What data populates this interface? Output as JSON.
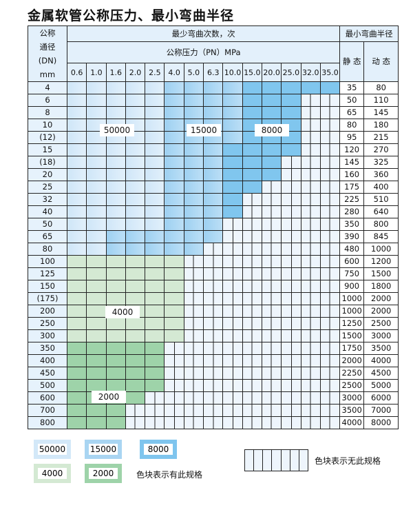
{
  "title": "金属软管公称压力、最小弯曲半径",
  "header": {
    "dn_label": [
      "公称",
      "通径",
      "(DN)",
      "mm"
    ],
    "bend_count": "最少弯曲次数，次",
    "pressure": "公称压力（PN）MPa",
    "min_radius": "最小弯曲半径",
    "static": "静 态",
    "dynamic": "动 态",
    "pressures": [
      "0.6",
      "1.0",
      "1.6",
      "2.0",
      "2.5",
      "4.0",
      "5.0",
      "6.3",
      "10.0",
      "15.0",
      "20.0",
      "25.0",
      "32.0",
      "35.0"
    ]
  },
  "categories": {
    "A": {
      "label": "50000",
      "color": "#d6eaf8"
    },
    "B": {
      "label": "15000",
      "color": "#a8d4f2"
    },
    "C": {
      "label": "8000",
      "color": "#80c6ee"
    },
    "D": {
      "label": "4000",
      "color": "#d4e9d3"
    },
    "E": {
      "label": "2000",
      "color": "#9ed3a9"
    },
    "N": {
      "label": "",
      "color": "#eef5fc"
    }
  },
  "rows": [
    {
      "dn": "4",
      "cells": "AAAAABBBBCCCCC",
      "static": "35",
      "dynamic": "80"
    },
    {
      "dn": "6",
      "cells": "AAAAABBBBCCCNN",
      "static": "50",
      "dynamic": "110"
    },
    {
      "dn": "8",
      "cells": "AAAAABBBBCCCNN",
      "static": "65",
      "dynamic": "145"
    },
    {
      "dn": "10",
      "cells": "AAAAABBBBCCCNN",
      "static": "80",
      "dynamic": "180"
    },
    {
      "dn": "(12)",
      "cells": "AAAAABBBBCCCNN",
      "static": "95",
      "dynamic": "215"
    },
    {
      "dn": "15",
      "cells": "AAAAABBBCCCCNN",
      "static": "120",
      "dynamic": "270"
    },
    {
      "dn": "(18)",
      "cells": "AAAAABBBCCCNNN",
      "static": "145",
      "dynamic": "325"
    },
    {
      "dn": "20",
      "cells": "AAAAABBBCCCNNN",
      "static": "160",
      "dynamic": "360"
    },
    {
      "dn": "25",
      "cells": "AAAAABBBCCNNNN",
      "static": "175",
      "dynamic": "400"
    },
    {
      "dn": "32",
      "cells": "AAAAABBBCNNNNN",
      "static": "225",
      "dynamic": "510"
    },
    {
      "dn": "40",
      "cells": "AAAAABBBCNNNNN",
      "static": "280",
      "dynamic": "640"
    },
    {
      "dn": "50",
      "cells": "AAAAABBBNNNNNN",
      "static": "350",
      "dynamic": "800"
    },
    {
      "dn": "65",
      "cells": "AABBBBBBNNNNNN",
      "static": "390",
      "dynamic": "845"
    },
    {
      "dn": "80",
      "cells": "AABBBBBNNNNNNN",
      "static": "480",
      "dynamic": "1000"
    },
    {
      "dn": "100",
      "cells": "DDDDDDNNNNNNNN",
      "static": "600",
      "dynamic": "1200"
    },
    {
      "dn": "125",
      "cells": "DDDDDDNNNNNNNN",
      "static": "750",
      "dynamic": "1500"
    },
    {
      "dn": "150",
      "cells": "DDDDDDNNNNNNNN",
      "static": "900",
      "dynamic": "1800"
    },
    {
      "dn": "(175)",
      "cells": "DDDDDDNNNNNNNN",
      "static": "1000",
      "dynamic": "2000"
    },
    {
      "dn": "200",
      "cells": "DDDDDDNNNNNNNN",
      "static": "1000",
      "dynamic": "2000"
    },
    {
      "dn": "250",
      "cells": "DDDDDDNNNNNNNN",
      "static": "1250",
      "dynamic": "2500"
    },
    {
      "dn": "300",
      "cells": "DDDDDDNNNNNNNN",
      "static": "1500",
      "dynamic": "3000"
    },
    {
      "dn": "350",
      "cells": "EEEEENNNNNNNNN",
      "static": "1750",
      "dynamic": "3500"
    },
    {
      "dn": "400",
      "cells": "EEEEENNNNNNNNN",
      "static": "2000",
      "dynamic": "4000"
    },
    {
      "dn": "450",
      "cells": "EEEEENNNNNNNNN",
      "static": "2250",
      "dynamic": "4500"
    },
    {
      "dn": "500",
      "cells": "EEEEENNNNNNNNN",
      "static": "2500",
      "dynamic": "5000"
    },
    {
      "dn": "600",
      "cells": "EEEENNNNNNNNNN",
      "static": "3000",
      "dynamic": "6000"
    },
    {
      "dn": "700",
      "cells": "EEENNNNNNNNNNN",
      "static": "3500",
      "dynamic": "7000"
    },
    {
      "dn": "800",
      "cells": "EEENNNNNNNNNNN",
      "static": "4000",
      "dynamic": "8000"
    }
  ],
  "legend": {
    "has_spec": "色块表示有此规格",
    "no_spec": "色块表示无此规格"
  }
}
